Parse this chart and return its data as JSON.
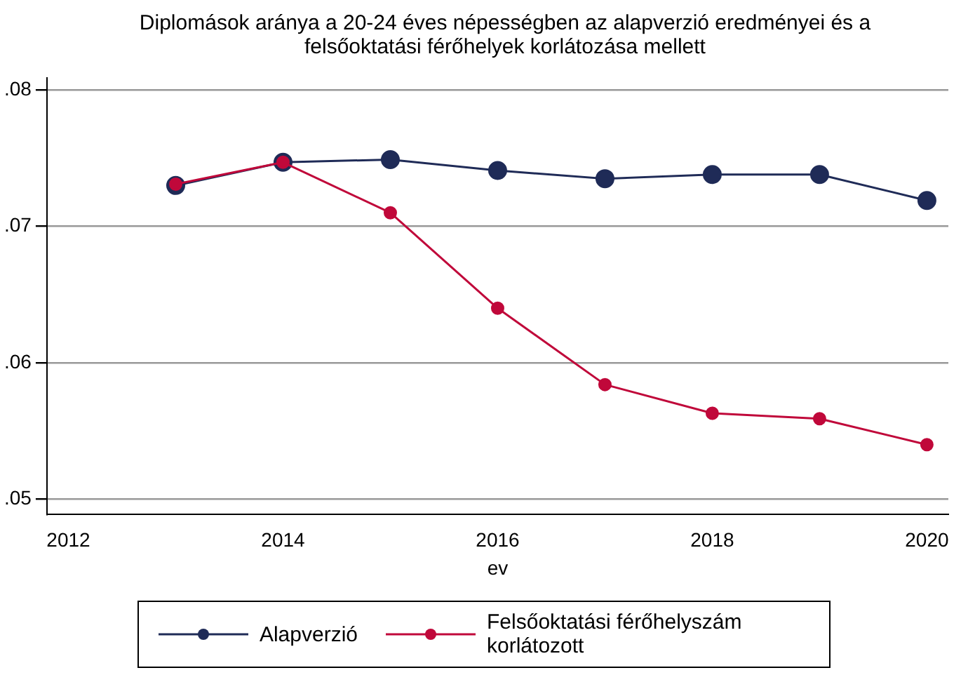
{
  "chart_data": {
    "type": "line",
    "title": "Diplomások aránya a 20-24 éves népességben az alapverzió eredményei és a felsőoktatási férőhelyek  korlátozása mellett",
    "xlabel": "ev",
    "x": [
      2013,
      2014,
      2015,
      2016,
      2017,
      2018,
      2019,
      2020
    ],
    "series": [
      {
        "name": "Alapverzió",
        "color": "#1f2b57",
        "values": [
          0.073,
          0.0747,
          0.0749,
          0.0741,
          0.0735,
          0.0738,
          0.0738,
          0.0719
        ]
      },
      {
        "name": "Felsőoktatási férőhelyszám korlátozott",
        "color": "#c0083a",
        "values": [
          0.0731,
          0.0747,
          0.071,
          0.064,
          0.0584,
          0.0563,
          0.0559,
          0.054
        ]
      }
    ],
    "xlim": [
      2011.8,
      2020.2
    ],
    "xticks": [
      2012,
      2014,
      2016,
      2018,
      2020
    ],
    "ylim": [
      0.0489,
      0.0809
    ],
    "yticks": [
      {
        "value": 0.05,
        "label": ".05"
      },
      {
        "value": 0.06,
        "label": ".06"
      },
      {
        "value": 0.07,
        "label": ".07"
      },
      {
        "value": 0.08,
        "label": ".08"
      }
    ],
    "grid": "y",
    "legend": "bottom",
    "marker": "circle",
    "line_style": "solid"
  }
}
